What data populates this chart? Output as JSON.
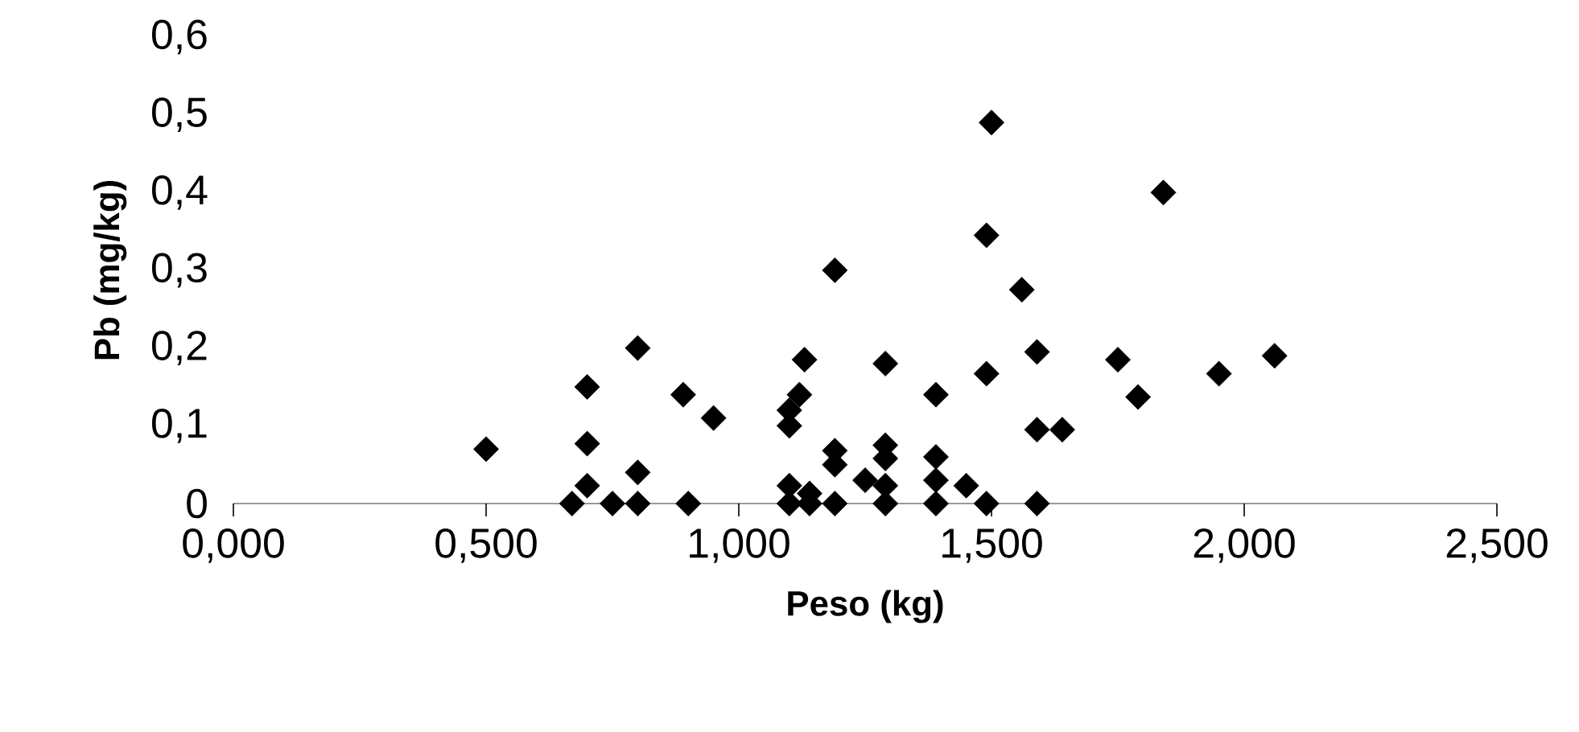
{
  "chart_data": {
    "type": "scatter",
    "xlabel": "Peso (kg)",
    "ylabel": "Pb (mg/kg)",
    "x": [
      0.5,
      0.67,
      0.7,
      0.7,
      0.7,
      0.75,
      0.8,
      0.8,
      0.8,
      0.89,
      0.9,
      0.95,
      1.1,
      1.1,
      1.1,
      1.12,
      1.1,
      1.13,
      1.14,
      1.14,
      1.19,
      1.19,
      1.19,
      1.19,
      1.25,
      1.29,
      1.29,
      1.29,
      1.29,
      1.29,
      1.39,
      1.39,
      1.39,
      1.39,
      1.45,
      1.49,
      1.49,
      1.49,
      1.5,
      1.56,
      1.59,
      1.59,
      1.59,
      1.64,
      1.75,
      1.79,
      1.84,
      1.95,
      2.06
    ],
    "values": [
      0.07,
      0,
      0.15,
      0.077,
      0.023,
      0,
      0.2,
      0.04,
      0,
      0.14,
      0,
      0.11,
      0.1,
      0.023,
      0,
      0.14,
      0.12,
      0.185,
      0.013,
      0,
      0,
      0.068,
      0.05,
      0.3,
      0.03,
      0.18,
      0.075,
      0.058,
      0.023,
      0,
      0.14,
      0.06,
      0.03,
      0,
      0.023,
      0,
      0.167,
      0.345,
      0.49,
      0.275,
      0.195,
      0.095,
      0,
      0.095,
      0.185,
      0.137,
      0.4,
      0.167,
      0.19
    ],
    "color": "#000000",
    "marker": "diamond",
    "xlim": [
      0,
      2.5
    ],
    "ylim": [
      0,
      0.6
    ],
    "xticks": [
      {
        "value": 0,
        "label": "0,000"
      },
      {
        "value": 0.5,
        "label": "0,500"
      },
      {
        "value": 1,
        "label": "1,000"
      },
      {
        "value": 1.5,
        "label": "1,500"
      },
      {
        "value": 2,
        "label": "2,000"
      },
      {
        "value": 2.5,
        "label": "2,500"
      }
    ],
    "yticks": [
      0,
      {
        "value": 0.1,
        "label": "0,1"
      },
      {
        "value": 0.2,
        "label": "0,2"
      },
      {
        "value": 0.3,
        "label": "0,3"
      },
      {
        "value": 0.4,
        "label": "0,4"
      },
      {
        "value": 0.5,
        "label": "0,5"
      },
      {
        "value": 0.6,
        "label": "0,6"
      }
    ],
    "grid": false
  }
}
